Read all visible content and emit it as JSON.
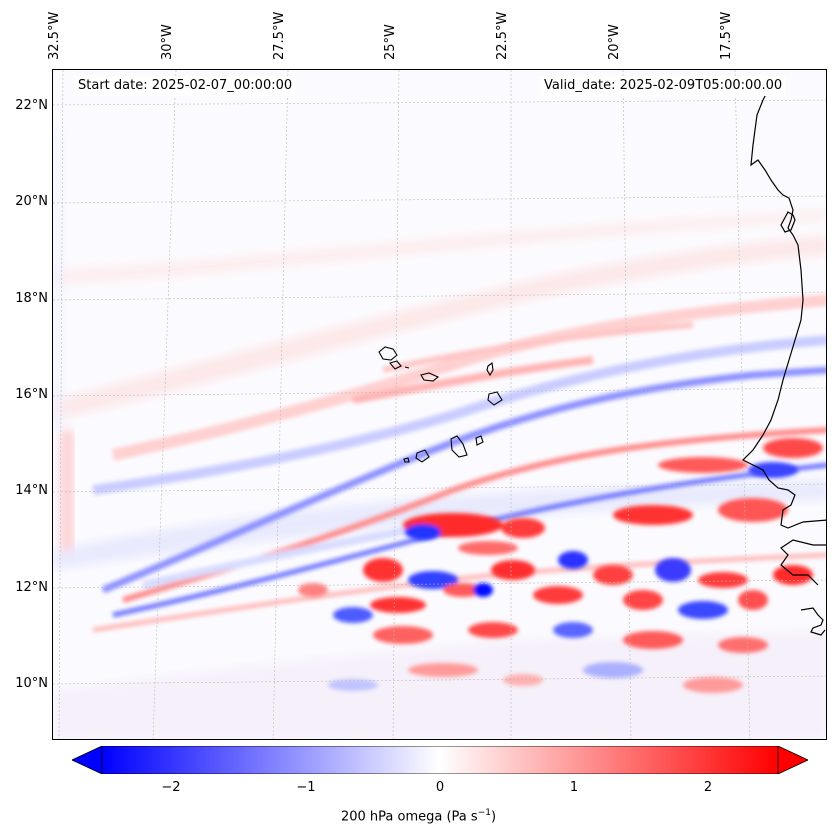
{
  "map": {
    "start_date": "Start date: 2025-02-07_00:00:00",
    "valid_date": "Valid_date: 2025-02-09T05:00:00.00",
    "variable": "200 hPa omega",
    "units_text": "Pa s",
    "units_exponent": "−1",
    "lon_labels": [
      "32.5°W",
      "30°W",
      "27.5°W",
      "25°W",
      "22.5°W",
      "20°W",
      "17.5°W"
    ],
    "lat_labels": [
      "22°N",
      "20°N",
      "18°N",
      "16°N",
      "14°N",
      "12°N",
      "10°N"
    ],
    "features": [
      "Cape Verde islands",
      "West African coastline"
    ]
  },
  "colorbar": {
    "ticks": [
      "−2",
      "−1",
      "0",
      "1",
      "2"
    ],
    "min": -2.5,
    "max": 2.5,
    "extend": "both",
    "colormap": "bwr",
    "negative_color": "#0000ff",
    "zero_color": "#ffffff",
    "positive_color": "#ff0000"
  }
}
